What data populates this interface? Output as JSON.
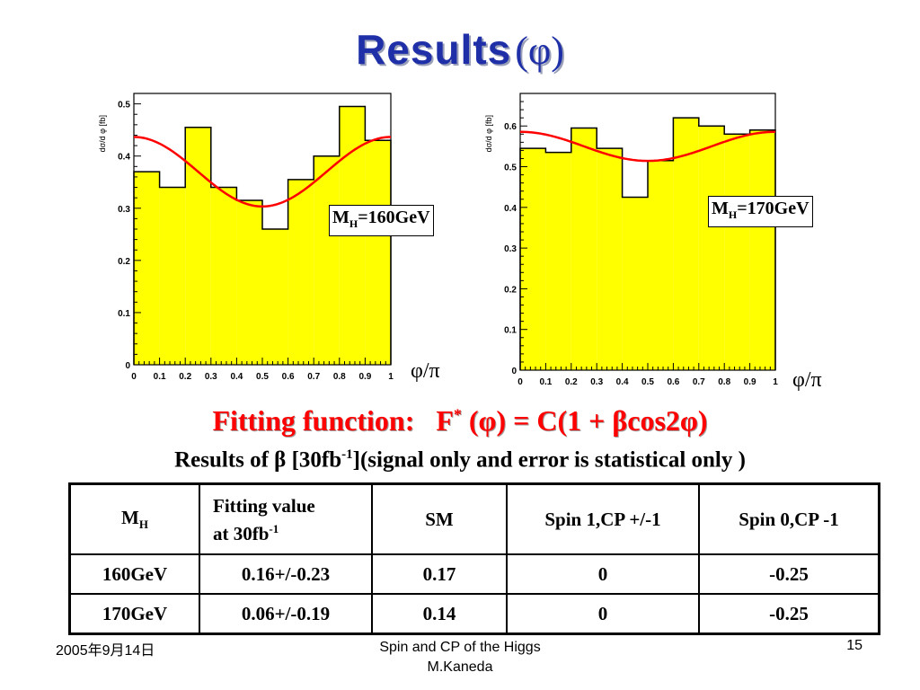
{
  "slide": {
    "title_word": "Results",
    "title_paren": "(φ)"
  },
  "chart_data": [
    {
      "type": "bar",
      "subtype": "histogram-with-fit",
      "ylabel": "dσ/d φ [fb]",
      "xlabel": "φ/π",
      "xlim": [
        0,
        1
      ],
      "ylim": [
        0,
        0.52
      ],
      "x_ticks": [
        "0",
        "0.1",
        "0.2",
        "0.3",
        "0.4",
        "0.5",
        "0.6",
        "0.7",
        "0.8",
        "0.9",
        "1"
      ],
      "y_ticks": [
        "0",
        "0.1",
        "0.2",
        "0.3",
        "0.4",
        "0.5"
      ],
      "y_tick_values": [
        0,
        0.1,
        0.2,
        0.3,
        0.4,
        0.5
      ],
      "bin_edges": [
        0,
        0.1,
        0.2,
        0.3,
        0.4,
        0.5,
        0.6,
        0.7,
        0.8,
        0.9,
        1.0
      ],
      "values": [
        0.37,
        0.34,
        0.455,
        0.34,
        0.315,
        0.26,
        0.355,
        0.4,
        0.495,
        0.43
      ],
      "fit": {
        "function": "C(1 + βcos2φ)",
        "C": 0.37,
        "beta": 0.18
      },
      "annotation_main": "M",
      "annotation_sub": "H",
      "annotation_rest": "=160GeV",
      "colors": {
        "fill": "#ffff00",
        "fit_line": "#ff0000"
      }
    },
    {
      "type": "bar",
      "subtype": "histogram-with-fit",
      "ylabel": "dσ/d φ [fb]",
      "xlabel": "φ/π",
      "xlim": [
        0,
        1
      ],
      "ylim": [
        0,
        0.68
      ],
      "x_ticks": [
        "0",
        "0.1",
        "0.2",
        "0.3",
        "0.4",
        "0.5",
        "0.6",
        "0.7",
        "0.8",
        "0.9",
        "1"
      ],
      "y_ticks": [
        "0",
        "0.1",
        "0.2",
        "0.3",
        "0.4",
        "0.5",
        "0.6"
      ],
      "y_tick_values": [
        0,
        0.1,
        0.2,
        0.3,
        0.4,
        0.5,
        0.6
      ],
      "bin_edges": [
        0,
        0.1,
        0.2,
        0.3,
        0.4,
        0.5,
        0.6,
        0.7,
        0.8,
        0.9,
        1.0
      ],
      "values": [
        0.545,
        0.535,
        0.595,
        0.545,
        0.425,
        0.515,
        0.62,
        0.6,
        0.58,
        0.59
      ],
      "fit": {
        "function": "C(1 + βcos2φ)",
        "C": 0.55,
        "beta": 0.065
      },
      "annotation_main": "M",
      "annotation_sub": "H",
      "annotation_rest": "=170GeV",
      "colors": {
        "fill": "#ffff00",
        "fit_line": "#ff0000"
      }
    }
  ],
  "fitting": {
    "label": "Fitting function:",
    "F": "F",
    "star": "*",
    "formula": "(φ) = C(1 +  βcos2φ)"
  },
  "results_line": {
    "pre": "Results of β  [30fb",
    "sup": "-1",
    "post": "](signal only and error is statistical only )"
  },
  "table": {
    "headers": {
      "mh_main": "M",
      "mh_sub": "H",
      "fit_l1": "Fitting value",
      "fit_l2": "at 30fb",
      "fit_sup": "-1",
      "sm": "SM",
      "spin1": "Spin 1,CP +/-1",
      "spin0": "Spin 0,CP -1"
    },
    "rows": [
      {
        "mh": "160GeV",
        "fit": "0.16+/-0.23",
        "sm": "0.17",
        "spin1": "0",
        "spin0": "-0.25"
      },
      {
        "mh": "170GeV",
        "fit": "0.06+/-0.19",
        "sm": "0.14",
        "spin1": "0",
        "spin0": "-0.25"
      }
    ]
  },
  "footer": {
    "date": "2005年9月14日",
    "title_l1": "Spin and CP of the Higgs",
    "title_l2": "M.Kaneda",
    "page": "15"
  }
}
